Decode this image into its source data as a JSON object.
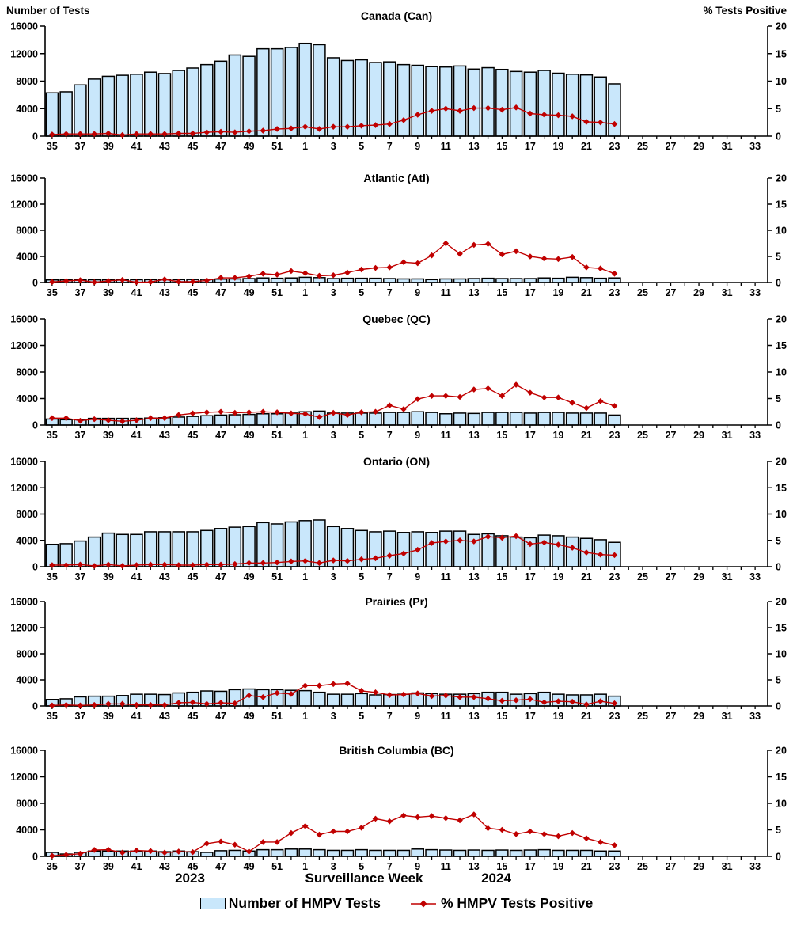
{
  "header": {
    "left_axis_title": "Number of Tests",
    "right_axis_title": "% Tests Positive"
  },
  "x_axis": {
    "year_left": "2023",
    "axis_label": "Surveillance Week",
    "year_right": "2024"
  },
  "axes": {
    "y_left_ticks": [
      0,
      4000,
      8000,
      12000,
      16000
    ],
    "y_right_ticks": [
      0,
      5,
      10,
      15,
      20
    ],
    "ylim_left": [
      0,
      16000
    ],
    "ylim_right": [
      0,
      20
    ]
  },
  "legend": [
    {
      "label": "Number of HMPV Tests",
      "type": "bar"
    },
    {
      "label": "% HMPV Tests Positive",
      "type": "line"
    }
  ],
  "colors": {
    "bar_fill": "#C9E7FB",
    "bar_border": "#000000",
    "line": "#C00000",
    "axis": "#000000"
  },
  "chart_data": [
    {
      "type": "bar",
      "title": "Canada (Can)",
      "categories": [
        "35",
        "36",
        "37",
        "38",
        "39",
        "40",
        "41",
        "42",
        "43",
        "44",
        "45",
        "46",
        "47",
        "48",
        "49",
        "50",
        "51",
        "52",
        "1",
        "2",
        "3",
        "4",
        "5",
        "6",
        "7",
        "8",
        "9",
        "10",
        "11",
        "12",
        "13",
        "14",
        "15",
        "16",
        "17",
        "18",
        "19",
        "20",
        "21",
        "22",
        "23",
        "24",
        "25",
        "26",
        "27",
        "28",
        "29",
        "30",
        "31",
        "32",
        "33"
      ],
      "ylim_left": [
        0,
        16000
      ],
      "ylim_right": [
        0,
        20
      ],
      "series": [
        {
          "name": "Number of HMPV Tests",
          "type": "bar",
          "axis": "left",
          "values": [
            6300,
            6450,
            7450,
            8300,
            8700,
            8850,
            9000,
            9300,
            9100,
            9550,
            9900,
            10400,
            10900,
            11800,
            11600,
            12700,
            12700,
            12900,
            13500,
            13300,
            11400,
            11000,
            11100,
            10700,
            10800,
            10400,
            10300,
            10100,
            10050,
            10200,
            9750,
            9950,
            9700,
            9400,
            9300,
            9550,
            9150,
            9000,
            8900,
            8600,
            7600,
            null,
            null,
            null,
            null,
            null,
            null,
            null,
            null,
            null,
            null
          ]
        },
        {
          "name": "% HMPV Tests Positive",
          "type": "line",
          "axis": "right",
          "values": [
            0.3,
            0.4,
            0.4,
            0.4,
            0.5,
            0.2,
            0.4,
            0.4,
            0.4,
            0.5,
            0.5,
            0.7,
            0.8,
            0.7,
            0.9,
            1.0,
            1.3,
            1.4,
            1.7,
            1.3,
            1.7,
            1.7,
            1.9,
            2.0,
            2.2,
            2.9,
            3.9,
            4.6,
            5.0,
            4.6,
            5.1,
            5.1,
            4.8,
            5.2,
            4.1,
            3.9,
            3.8,
            3.6,
            2.6,
            2.5,
            2.2,
            null,
            null,
            null,
            null,
            null,
            null,
            null,
            null,
            null,
            null
          ]
        }
      ]
    },
    {
      "type": "bar",
      "title": "Atlantic (Atl)",
      "categories": [
        "35",
        "36",
        "37",
        "38",
        "39",
        "40",
        "41",
        "42",
        "43",
        "44",
        "45",
        "46",
        "47",
        "48",
        "49",
        "50",
        "51",
        "52",
        "1",
        "2",
        "3",
        "4",
        "5",
        "6",
        "7",
        "8",
        "9",
        "10",
        "11",
        "12",
        "13",
        "14",
        "15",
        "16",
        "17",
        "18",
        "19",
        "20",
        "21",
        "22",
        "23",
        "24",
        "25",
        "26",
        "27",
        "28",
        "29",
        "30",
        "31",
        "32",
        "33"
      ],
      "ylim_left": [
        0,
        16000
      ],
      "ylim_right": [
        0,
        20
      ],
      "series": [
        {
          "name": "Number of HMPV Tests",
          "type": "bar",
          "axis": "left",
          "values": [
            400,
            420,
            430,
            420,
            430,
            450,
            430,
            440,
            450,
            450,
            460,
            480,
            520,
            550,
            600,
            700,
            650,
            700,
            800,
            750,
            600,
            650,
            650,
            650,
            600,
            550,
            550,
            450,
            550,
            550,
            600,
            650,
            600,
            600,
            600,
            700,
            650,
            800,
            750,
            650,
            700,
            null,
            null,
            null,
            null,
            null,
            null,
            null,
            null,
            null,
            null
          ]
        },
        {
          "name": "% HMPV Tests Positive",
          "type": "line",
          "axis": "right",
          "values": [
            0.1,
            0.3,
            0.45,
            0.05,
            0.3,
            0.5,
            0.05,
            0.1,
            0.6,
            0.15,
            0.15,
            0.4,
            0.9,
            0.9,
            1.2,
            1.7,
            1.5,
            2.2,
            1.8,
            1.3,
            1.4,
            1.9,
            2.5,
            2.8,
            2.9,
            3.9,
            3.7,
            5.2,
            7.5,
            5.5,
            7.2,
            7.4,
            5.4,
            6.0,
            5.0,
            4.6,
            4.5,
            4.9,
            2.9,
            2.7,
            1.7,
            null,
            null,
            null,
            null,
            null,
            null,
            null,
            null,
            null,
            null
          ]
        }
      ]
    },
    {
      "type": "bar",
      "title": "Quebec (QC)",
      "categories": [
        "35",
        "36",
        "37",
        "38",
        "39",
        "40",
        "41",
        "42",
        "43",
        "44",
        "45",
        "46",
        "47",
        "48",
        "49",
        "50",
        "51",
        "52",
        "1",
        "2",
        "3",
        "4",
        "5",
        "6",
        "7",
        "8",
        "9",
        "10",
        "11",
        "12",
        "13",
        "14",
        "15",
        "16",
        "17",
        "18",
        "19",
        "20",
        "21",
        "22",
        "23",
        "24",
        "25",
        "26",
        "27",
        "28",
        "29",
        "30",
        "31",
        "32",
        "33"
      ],
      "ylim_left": [
        0,
        16000
      ],
      "ylim_right": [
        0,
        20
      ],
      "series": [
        {
          "name": "Number of HMPV Tests",
          "type": "bar",
          "axis": "left",
          "values": [
            900,
            800,
            800,
            1000,
            1000,
            1000,
            1000,
            1050,
            1100,
            1200,
            1300,
            1400,
            1500,
            1550,
            1600,
            1700,
            1700,
            1800,
            2000,
            2100,
            1800,
            1800,
            1800,
            1800,
            1900,
            1900,
            2000,
            1900,
            1700,
            1800,
            1750,
            1900,
            1900,
            1900,
            1800,
            1900,
            1900,
            1800,
            1800,
            1800,
            1500,
            null,
            null,
            null,
            null,
            null,
            null,
            null,
            null,
            null,
            null
          ]
        },
        {
          "name": "% HMPV Tests Positive",
          "type": "line",
          "axis": "right",
          "values": [
            1.3,
            1.3,
            0.8,
            1.1,
            0.9,
            0.7,
            0.9,
            1.3,
            1.3,
            1.9,
            2.2,
            2.4,
            2.5,
            2.3,
            2.4,
            2.5,
            2.4,
            2.2,
            2.1,
            1.5,
            2.3,
            1.9,
            2.4,
            2.5,
            3.7,
            3.0,
            4.9,
            5.5,
            5.5,
            5.3,
            6.7,
            6.9,
            5.5,
            7.6,
            6.1,
            5.2,
            5.2,
            4.2,
            3.2,
            4.5,
            3.6,
            null,
            null,
            null,
            null,
            null,
            null,
            null,
            null,
            null,
            null
          ]
        }
      ]
    },
    {
      "type": "bar",
      "title": "Ontario (ON)",
      "categories": [
        "35",
        "36",
        "37",
        "38",
        "39",
        "40",
        "41",
        "42",
        "43",
        "44",
        "45",
        "46",
        "47",
        "48",
        "49",
        "50",
        "51",
        "52",
        "1",
        "2",
        "3",
        "4",
        "5",
        "6",
        "7",
        "8",
        "9",
        "10",
        "11",
        "12",
        "13",
        "14",
        "15",
        "16",
        "17",
        "18",
        "19",
        "20",
        "21",
        "22",
        "23",
        "24",
        "25",
        "26",
        "27",
        "28",
        "29",
        "30",
        "31",
        "32",
        "33"
      ],
      "ylim_left": [
        0,
        16000
      ],
      "ylim_right": [
        0,
        20
      ],
      "series": [
        {
          "name": "Number of HMPV Tests",
          "type": "bar",
          "axis": "left",
          "values": [
            3400,
            3500,
            3900,
            4500,
            5100,
            4900,
            4900,
            5300,
            5300,
            5300,
            5300,
            5500,
            5800,
            6000,
            6100,
            6700,
            6500,
            6800,
            7000,
            7100,
            6100,
            5800,
            5500,
            5300,
            5400,
            5200,
            5300,
            5200,
            5400,
            5400,
            4900,
            5000,
            4700,
            4500,
            4400,
            4800,
            4700,
            4500,
            4300,
            4100,
            3700,
            null,
            null,
            null,
            null,
            null,
            null,
            null,
            null,
            null,
            null
          ]
        },
        {
          "name": "% HMPV Tests Positive",
          "type": "line",
          "axis": "right",
          "values": [
            0.3,
            0.3,
            0.4,
            0.15,
            0.4,
            0.15,
            0.3,
            0.4,
            0.4,
            0.3,
            0.3,
            0.4,
            0.4,
            0.5,
            0.7,
            0.7,
            0.8,
            1.0,
            1.1,
            0.7,
            1.2,
            1.1,
            1.4,
            1.6,
            2.1,
            2.5,
            3.2,
            4.5,
            4.8,
            5.0,
            4.8,
            5.7,
            5.5,
            5.8,
            4.3,
            4.6,
            4.2,
            3.6,
            2.7,
            2.3,
            2.2,
            null,
            null,
            null,
            null,
            null,
            null,
            null,
            null,
            null,
            null
          ]
        }
      ]
    },
    {
      "type": "bar",
      "title": "Prairies (Pr)",
      "categories": [
        "35",
        "36",
        "37",
        "38",
        "39",
        "40",
        "41",
        "42",
        "43",
        "44",
        "45",
        "46",
        "47",
        "48",
        "49",
        "50",
        "51",
        "52",
        "1",
        "2",
        "3",
        "4",
        "5",
        "6",
        "7",
        "8",
        "9",
        "10",
        "11",
        "12",
        "13",
        "14",
        "15",
        "16",
        "17",
        "18",
        "19",
        "20",
        "21",
        "22",
        "23",
        "24",
        "25",
        "26",
        "27",
        "28",
        "29",
        "30",
        "31",
        "32",
        "33"
      ],
      "ylim_left": [
        0,
        16000
      ],
      "ylim_right": [
        0,
        20
      ],
      "series": [
        {
          "name": "Number of HMPV Tests",
          "type": "bar",
          "axis": "left",
          "values": [
            1000,
            1100,
            1400,
            1500,
            1500,
            1600,
            1800,
            1800,
            1750,
            2000,
            2100,
            2300,
            2250,
            2500,
            2600,
            2500,
            2500,
            2400,
            2350,
            2100,
            1800,
            1800,
            1900,
            1700,
            1750,
            1800,
            2000,
            1900,
            1800,
            1800,
            1900,
            2100,
            2100,
            1800,
            1900,
            2100,
            1800,
            1700,
            1700,
            1800,
            1500,
            null,
            null,
            null,
            null,
            null,
            null,
            null,
            null,
            null,
            null
          ]
        },
        {
          "name": "% HMPV Tests Positive",
          "type": "line",
          "axis": "right",
          "values": [
            0.1,
            0.2,
            0.1,
            0.2,
            0.4,
            0.4,
            0.2,
            0.2,
            0.2,
            0.6,
            0.7,
            0.4,
            0.6,
            0.5,
            2.0,
            1.7,
            2.5,
            2.3,
            3.9,
            3.9,
            4.2,
            4.3,
            2.9,
            2.6,
            2.1,
            2.2,
            2.4,
            1.9,
            2.0,
            1.7,
            1.7,
            1.4,
            1.0,
            1.1,
            1.3,
            0.7,
            0.9,
            0.8,
            0.3,
            0.9,
            0.5,
            null,
            null,
            null,
            null,
            null,
            null,
            null,
            null,
            null,
            null
          ]
        }
      ]
    },
    {
      "type": "bar",
      "title": "British Columbia (BC)",
      "categories": [
        "35",
        "36",
        "37",
        "38",
        "39",
        "40",
        "41",
        "42",
        "43",
        "44",
        "45",
        "46",
        "47",
        "48",
        "49",
        "50",
        "51",
        "52",
        "1",
        "2",
        "3",
        "4",
        "5",
        "6",
        "7",
        "8",
        "9",
        "10",
        "11",
        "12",
        "13",
        "14",
        "15",
        "16",
        "17",
        "18",
        "19",
        "20",
        "21",
        "22",
        "23",
        "24",
        "25",
        "26",
        "27",
        "28",
        "29",
        "30",
        "31",
        "32",
        "33"
      ],
      "ylim_left": [
        0,
        16000
      ],
      "ylim_right": [
        0,
        20
      ],
      "series": [
        {
          "name": "Number of HMPV Tests",
          "type": "bar",
          "axis": "left",
          "values": [
            600,
            350,
            600,
            800,
            800,
            800,
            800,
            800,
            700,
            800,
            700,
            600,
            850,
            900,
            800,
            1000,
            1000,
            1100,
            1100,
            1000,
            900,
            900,
            1000,
            900,
            900,
            900,
            1100,
            1000,
            950,
            900,
            950,
            900,
            950,
            900,
            950,
            1000,
            900,
            900,
            900,
            800,
            800,
            null,
            null,
            null,
            null,
            null,
            null,
            null,
            null,
            null,
            null
          ]
        },
        {
          "name": "% HMPV Tests Positive",
          "type": "line",
          "axis": "right",
          "values": [
            0.1,
            0.3,
            0.5,
            1.2,
            1.25,
            0.7,
            1.1,
            1.0,
            0.7,
            0.9,
            0.8,
            2.4,
            2.8,
            2.2,
            0.9,
            2.7,
            2.7,
            4.4,
            5.7,
            4.1,
            4.7,
            4.7,
            5.4,
            7.1,
            6.6,
            7.7,
            7.4,
            7.6,
            7.2,
            6.8,
            7.9,
            5.3,
            5.0,
            4.2,
            4.7,
            4.2,
            3.8,
            4.4,
            3.4,
            2.7,
            2.1,
            null,
            null,
            null,
            null,
            null,
            null,
            null,
            null,
            null,
            null
          ]
        }
      ]
    }
  ]
}
